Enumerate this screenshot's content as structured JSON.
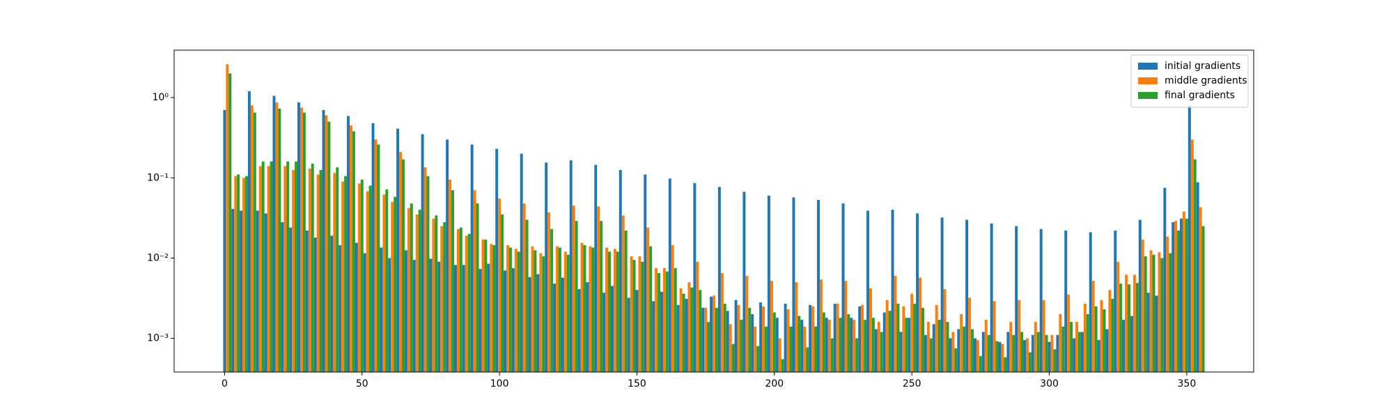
{
  "chart_data": {
    "type": "bar",
    "log_y": true,
    "grid": false,
    "legend": "upper right",
    "x": [
      0,
      3,
      6,
      9,
      12,
      15,
      18,
      21,
      24,
      27,
      30,
      33,
      36,
      39,
      42,
      45,
      48,
      51,
      54,
      57,
      60,
      63,
      66,
      69,
      72,
      75,
      78,
      81,
      84,
      87,
      90,
      93,
      96,
      99,
      102,
      105,
      108,
      111,
      114,
      117,
      120,
      123,
      126,
      129,
      132,
      135,
      138,
      141,
      144,
      147,
      150,
      153,
      156,
      159,
      162,
      165,
      168,
      171,
      174,
      177,
      180,
      183,
      186,
      189,
      192,
      195,
      198,
      201,
      204,
      207,
      210,
      213,
      216,
      219,
      222,
      225,
      228,
      231,
      234,
      237,
      240,
      243,
      246,
      249,
      252,
      255,
      258,
      261,
      264,
      267,
      270,
      273,
      276,
      279,
      282,
      285,
      288,
      291,
      294,
      297,
      300,
      303,
      306,
      309,
      312,
      315,
      318,
      321,
      324,
      327,
      330,
      333,
      336,
      339,
      342,
      345,
      348,
      351,
      354
    ],
    "series": [
      {
        "name": "initial gradients",
        "color": "#1f77b4",
        "values": [
          0.7,
          0.041,
          0.039,
          1.2,
          0.039,
          0.036,
          1.05,
          0.028,
          0.024,
          0.87,
          0.022,
          0.018,
          0.7,
          0.019,
          0.0145,
          0.59,
          0.0155,
          0.0115,
          0.48,
          0.0135,
          0.01,
          0.41,
          0.0125,
          0.0095,
          0.35,
          0.0098,
          0.009,
          0.3,
          0.0082,
          0.0082,
          0.26,
          0.0073,
          0.0085,
          0.23,
          0.007,
          0.0075,
          0.2,
          0.0058,
          0.0063,
          0.155,
          0.0048,
          0.0057,
          0.165,
          0.0041,
          0.005,
          0.145,
          0.0037,
          0.0045,
          0.125,
          0.0032,
          0.004,
          0.11,
          0.0029,
          0.0038,
          0.098,
          0.0026,
          0.0031,
          0.086,
          0.0024,
          0.0033,
          0.077,
          0.0022,
          0.003,
          0.067,
          0.002,
          0.0028,
          0.06,
          0.0018,
          0.0027,
          0.057,
          0.0017,
          0.0026,
          0.053,
          0.0018,
          0.0027,
          0.048,
          0.0018,
          0.0025,
          0.039,
          0.0013,
          0.0021,
          0.04,
          0.0012,
          0.0018,
          0.036,
          0.0011,
          0.0015,
          0.032,
          0.001,
          0.0013,
          0.03,
          0.001,
          0.0012,
          0.027,
          0.0009,
          0.0012,
          0.025,
          0.00095,
          0.0011,
          0.023,
          0.0009,
          0.0011,
          0.022,
          0.001,
          0.0012,
          0.021,
          0.00095,
          0.0013,
          0.022,
          0.0017,
          0.0019,
          0.03,
          0.0037,
          0.0034,
          0.075,
          0.028,
          0.031,
          0.8,
          0.088
        ]
      },
      {
        "name": "middle gradients",
        "color": "#ff7f0e",
        "values": [
          2.6,
          0.105,
          0.1,
          0.8,
          0.14,
          0.14,
          0.87,
          0.14,
          0.125,
          0.75,
          0.13,
          0.11,
          0.6,
          0.115,
          0.09,
          0.45,
          0.085,
          0.068,
          0.3,
          0.062,
          0.05,
          0.21,
          0.042,
          0.035,
          0.135,
          0.031,
          0.025,
          0.095,
          0.023,
          0.019,
          0.07,
          0.017,
          0.015,
          0.055,
          0.0145,
          0.013,
          0.048,
          0.014,
          0.0115,
          0.037,
          0.014,
          0.012,
          0.045,
          0.0155,
          0.014,
          0.044,
          0.0135,
          0.013,
          0.034,
          0.0105,
          0.0105,
          0.024,
          0.0075,
          0.0075,
          0.0145,
          0.0042,
          0.005,
          0.009,
          0.0024,
          0.0034,
          0.0065,
          0.0015,
          0.0026,
          0.006,
          0.0014,
          0.0025,
          0.0052,
          0.001,
          0.0023,
          0.005,
          0.0014,
          0.0025,
          0.0054,
          0.0017,
          0.0027,
          0.0052,
          0.0017,
          0.0026,
          0.0042,
          0.0016,
          0.003,
          0.006,
          0.0025,
          0.0036,
          0.0057,
          0.0016,
          0.0026,
          0.0041,
          0.0012,
          0.002,
          0.0032,
          0.00095,
          0.0017,
          0.0029,
          0.00085,
          0.0016,
          0.003,
          0.001,
          0.0016,
          0.003,
          0.0011,
          0.002,
          0.0035,
          0.0016,
          0.0027,
          0.0052,
          0.003,
          0.004,
          0.009,
          0.0062,
          0.0062,
          0.017,
          0.0125,
          0.0118,
          0.0185,
          0.029,
          0.038,
          0.3,
          0.043
        ]
      },
      {
        "name": "final gradients",
        "color": "#2ca02c",
        "values": [
          2.0,
          0.11,
          0.105,
          0.65,
          0.16,
          0.16,
          0.73,
          0.16,
          0.16,
          0.65,
          0.15,
          0.125,
          0.5,
          0.135,
          0.105,
          0.38,
          0.095,
          0.08,
          0.26,
          0.072,
          0.058,
          0.17,
          0.048,
          0.04,
          0.105,
          0.034,
          0.028,
          0.07,
          0.024,
          0.02,
          0.048,
          0.017,
          0.0145,
          0.035,
          0.0135,
          0.012,
          0.03,
          0.0125,
          0.0105,
          0.023,
          0.0135,
          0.011,
          0.029,
          0.0145,
          0.0135,
          0.029,
          0.012,
          0.012,
          0.022,
          0.0095,
          0.009,
          0.014,
          0.0065,
          0.0068,
          0.0075,
          0.0036,
          0.0043,
          0.004,
          0.0016,
          0.0024,
          0.0027,
          0.00085,
          0.0017,
          0.0024,
          0.0008,
          0.0014,
          0.0021,
          0.00055,
          0.0014,
          0.0019,
          0.00077,
          0.0014,
          0.0021,
          0.001,
          0.0018,
          0.002,
          0.001,
          0.0017,
          0.0018,
          0.0012,
          0.0022,
          0.0027,
          0.0018,
          0.0027,
          0.0024,
          0.001,
          0.0017,
          0.0016,
          0.00075,
          0.0014,
          0.0013,
          0.0006,
          0.0011,
          0.00092,
          0.00058,
          0.0011,
          0.0012,
          0.00067,
          0.0012,
          0.0011,
          0.00073,
          0.0014,
          0.0016,
          0.0012,
          0.002,
          0.0025,
          0.0023,
          0.0031,
          0.0048,
          0.0047,
          0.0049,
          0.0105,
          0.011,
          0.01,
          0.0115,
          0.022,
          0.031,
          0.17,
          0.025
        ]
      }
    ],
    "xlim": [
      -18.35,
      374.35
    ],
    "xticks": [
      0,
      50,
      100,
      150,
      200,
      250,
      300,
      350
    ],
    "ylim": [
      0.00038,
      3.9
    ],
    "yticks": [
      {
        "value": 0.001,
        "label": "10⁻³"
      },
      {
        "value": 0.01,
        "label": "10⁻²"
      },
      {
        "value": 0.1,
        "label": "10⁻¹"
      },
      {
        "value": 1,
        "label": "10⁰"
      }
    ]
  }
}
